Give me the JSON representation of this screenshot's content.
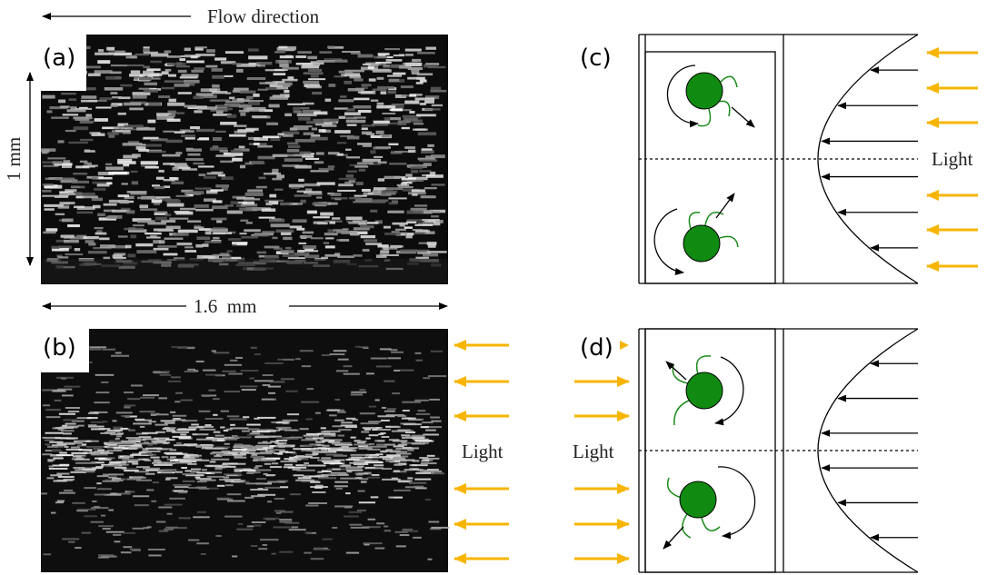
{
  "panel_a": {
    "label": "(a)",
    "flow_direction": "Flow direction",
    "height_scale": "1 mm",
    "width_scale": "1.6  mm"
  },
  "panel_b": {
    "label": "(b)",
    "light": "Light"
  },
  "panel_c": {
    "label": "(c)",
    "light": "Light"
  },
  "panel_d": {
    "label": "(d)",
    "light": "Light"
  }
}
